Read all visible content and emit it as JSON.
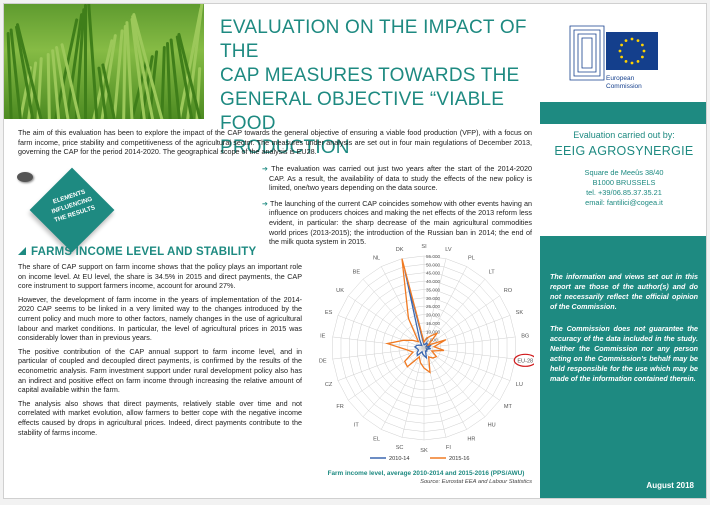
{
  "title_lines": [
    "EVALUATION ON THE IMPACT OF THE",
    "CAP MEASURES TOWARDS THE",
    "GENERAL OBJECTIVE “VIABLE FOOD",
    "PRODUCTION"
  ],
  "logo": {
    "label_line1": "European",
    "label_line2": "Commission"
  },
  "intro": "The aim of this evaluation has been to explore the impact of the CAP towards the general objective of ensuring a viable food production (VFP), with a focus on farm income, price stability and competitiveness of the agricultural sector. The measures under analysis are set out in four main regulations of December 2013, governing the CAP for the period 2014-2020. The geographical scope of the analysis is EU28.",
  "bullets": [
    "The evaluation was carried out just two years after the start of the 2014-2020 CAP. As a result, the availability of data to study the effects of the new policy is limited, one/two years depending on the data source.",
    "The launching of the current CAP coincides somehow with other events having an influence on producers choices and making the net effects of the 2013 reform less evident, in particular: the sharp decrease of the main agricultural commodities world prices (2013-2015); the introduction of the Russian ban in 2014; the end of the milk quota system in 2015."
  ],
  "note_tag": {
    "line1": "ELEMENTS",
    "line2": "INFLUENCING",
    "line3": "THE RESULTS"
  },
  "section_heading": "FARMS INCOME LEVEL AND STABILITY",
  "paragraphs": [
    "The share of CAP support on farm income shows that the policy plays an important role on income level. At EU level, the share is 34.5% in 2015 and direct payments, the CAP core instrument to support farmers income, account for around 27%.",
    "However, the development of farm income in the years of implementation of the 2014-2020 CAP seems to be linked in a very limited way to the changes introduced by the current policy and much more to other factors, namely changes in the use of agricultural labour and market conditions. In particular, the level of agricultural prices in 2015 was considerably lower than in previous years.",
    "The positive contribution of the CAP annual support to farm income level, and in particular of coupled and decoupled direct payments, is confirmed by the results of the econometric analysis. Farm investment support under rural development policy also has an indirect and positive effect on farm income through increasing the relative amount of capital available within the farm.",
    "The analysis also shows that direct payments, relatively stable over time and not correlated with market evolution, allow farmers to better cope with the negative income effects caused by drops in agricultural prices. Indeed, direct payments contribute to the stability of farms income."
  ],
  "chart_data": {
    "type": "radar",
    "title": "Farm income level, average 2010-2014 and 2015-2016 (PPS/AWU)",
    "source": "Source: Eurostat EEA and Labour Statistics",
    "categories": [
      "SI",
      "LV",
      "PL",
      "LT",
      "RO",
      "SK",
      "BG",
      "EU-28",
      "LU",
      "MT",
      "HU",
      "HR",
      "FI",
      "SK",
      "SC",
      "EL",
      "IT",
      "FR",
      "CZ",
      "DE",
      "IE",
      "ES",
      "UK",
      "BE",
      "NL",
      "DK"
    ],
    "axis_max": 55000,
    "ticks": [
      0,
      5000,
      10000,
      15000,
      20000,
      25000,
      30000,
      35000,
      40000,
      45000,
      50000,
      55000
    ],
    "tick_labels": [
      "0",
      "5.000",
      "10.000",
      "15.000",
      "20.000",
      "25.000",
      "30.000",
      "35.000",
      "40.000",
      "45.000",
      "50.000",
      "55.000"
    ],
    "highlight_category": "EU-28",
    "series": [
      {
        "name": "2010-14",
        "color": "#3a67b0",
        "values": [
          2000,
          2000,
          3500,
          3000,
          1500,
          4500,
          2500,
          4000,
          1500,
          2000,
          2500,
          2000,
          6000,
          4500,
          3500,
          2500,
          6000,
          5000,
          3500,
          4000,
          5500,
          4500,
          3000,
          2000,
          5500,
          48000
        ]
      },
      {
        "name": "2015-16",
        "color": "#f07a23",
        "values": [
          3500,
          6000,
          8000,
          12000,
          3000,
          14000,
          6000,
          12000,
          5000,
          9000,
          8000,
          6000,
          15000,
          12000,
          9000,
          6000,
          15000,
          14000,
          7000,
          10000,
          22000,
          13000,
          8000,
          5000,
          20000,
          55000
        ]
      }
    ]
  },
  "sidebar": {
    "label": "Evaluation carried out by:",
    "org": "EEIG AGROSYNERGIE",
    "address": [
      "Square de Meeûs 38/40",
      "B1000 BRUSSELS",
      "tel. +39/06.85.37.35.21",
      "email: fantilici@cogea.it"
    ],
    "disclaimers": [
      "The information and views set out in this report are those of the author(s) and do not necessarily reflect the official opinion of the Commission.",
      "The Commission does not guarantee the accuracy of the data included in the study. Neither the Commission nor any person acting on the Commission’s behalf may be held responsible for the use which may be made of the information contained therein."
    ],
    "date": "August 2018"
  }
}
